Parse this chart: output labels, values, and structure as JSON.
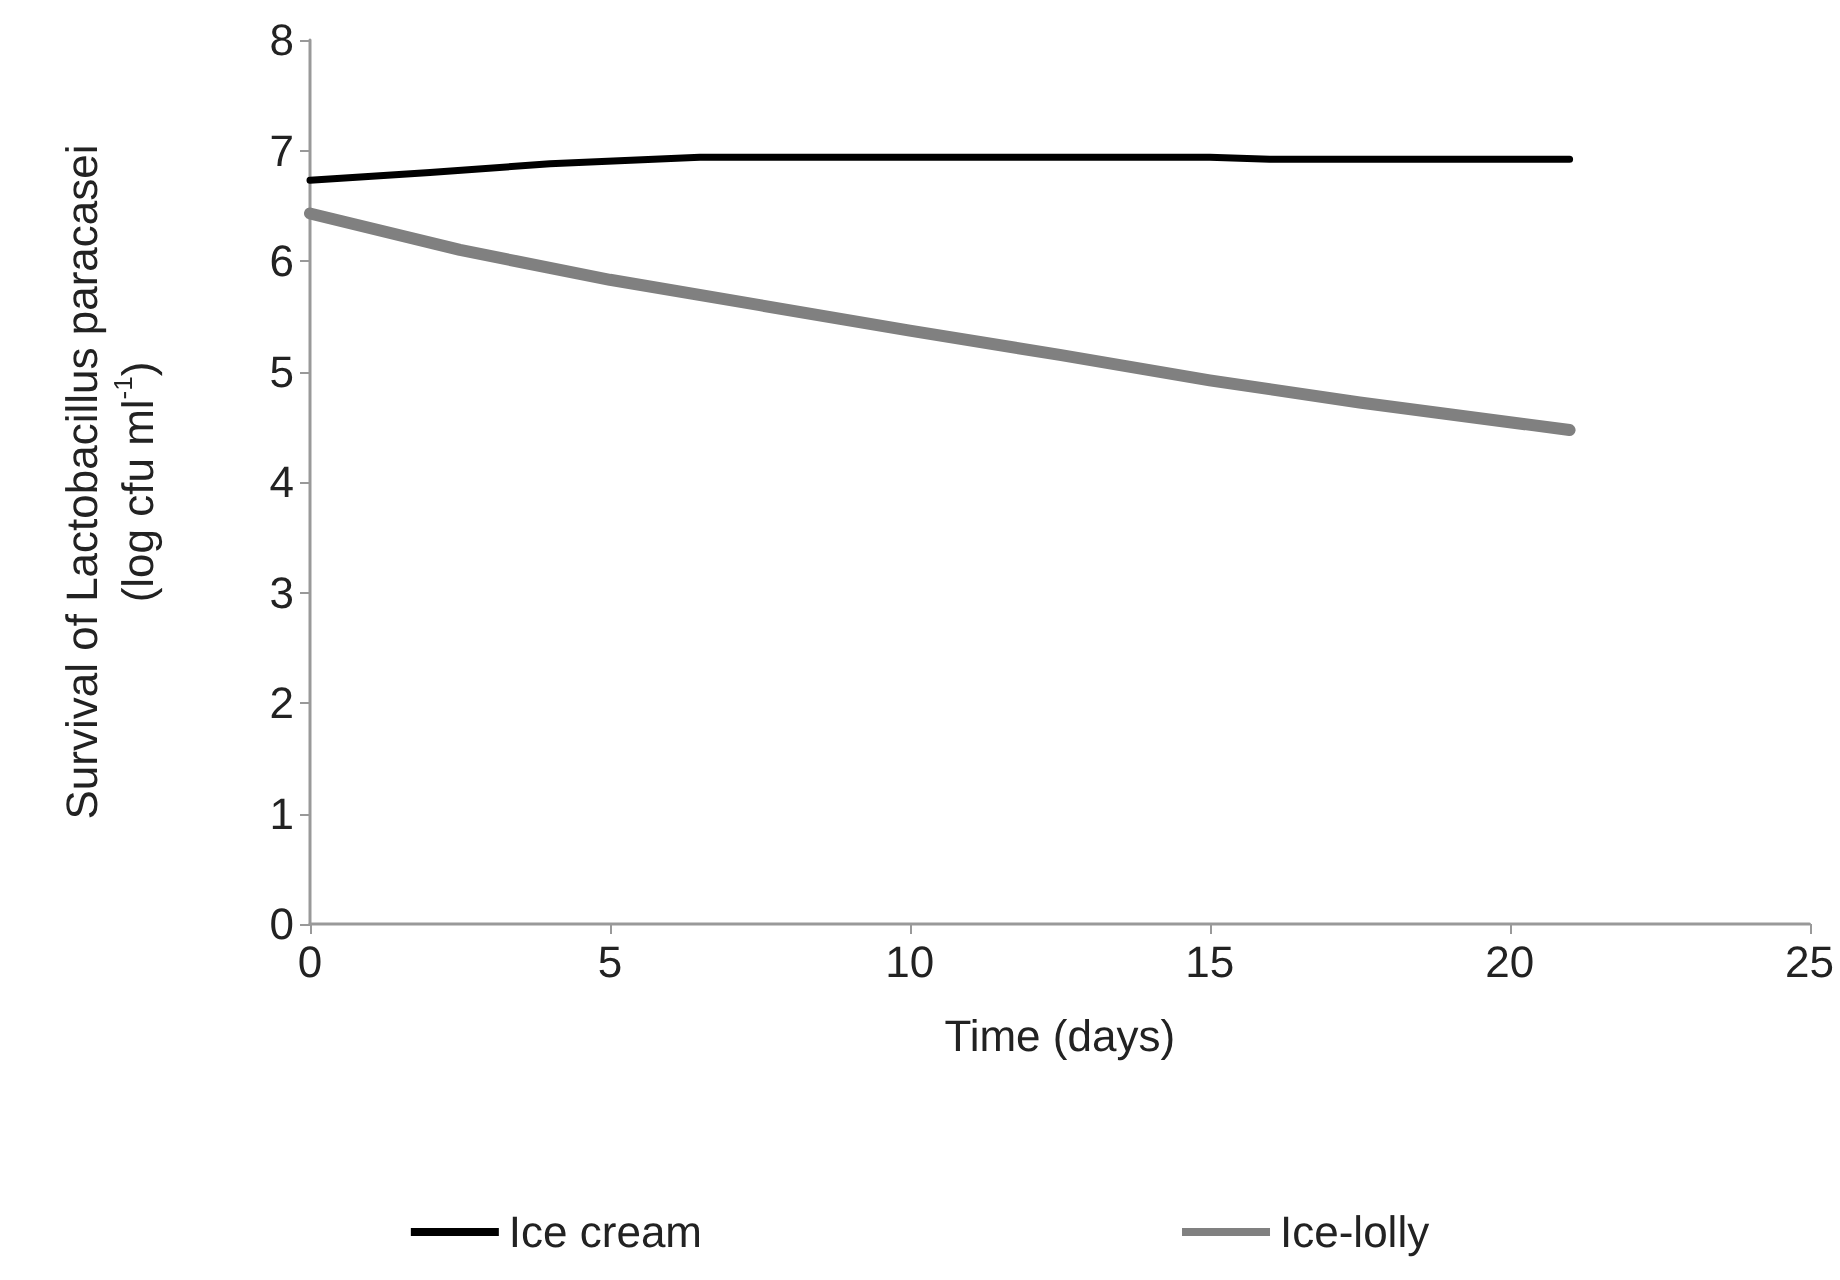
{
  "chart_data": {
    "type": "line",
    "xlabel": "Time (days)",
    "ylabel": "Survival of Lactobacillus paracasei\n(log cfu ml$^{-1}$)",
    "xlim": [
      0,
      25
    ],
    "xticks": [
      0,
      5,
      10,
      15,
      20,
      25
    ],
    "ylim": [
      0,
      8
    ],
    "yticks": [
      0,
      1,
      2,
      3,
      4,
      5,
      6,
      7,
      8
    ],
    "grid": false,
    "legend": "bottom",
    "marker": "none",
    "line_style": "solid",
    "series": [
      {
        "name": "Ice cream",
        "color": "#000000",
        "x": [
          0,
          2,
          4,
          6.5,
          10,
          15,
          16,
          21
        ],
        "values": [
          6.73,
          6.8,
          6.88,
          6.94,
          6.94,
          6.94,
          6.92,
          6.92
        ]
      },
      {
        "name": "Ice-lolly",
        "color": "#808080",
        "x": [
          0,
          2.5,
          5,
          7.5,
          10,
          12.5,
          15,
          17.5,
          21
        ],
        "values": [
          6.43,
          6.1,
          5.83,
          5.6,
          5.37,
          5.15,
          4.92,
          4.72,
          4.47
        ]
      }
    ]
  }
}
